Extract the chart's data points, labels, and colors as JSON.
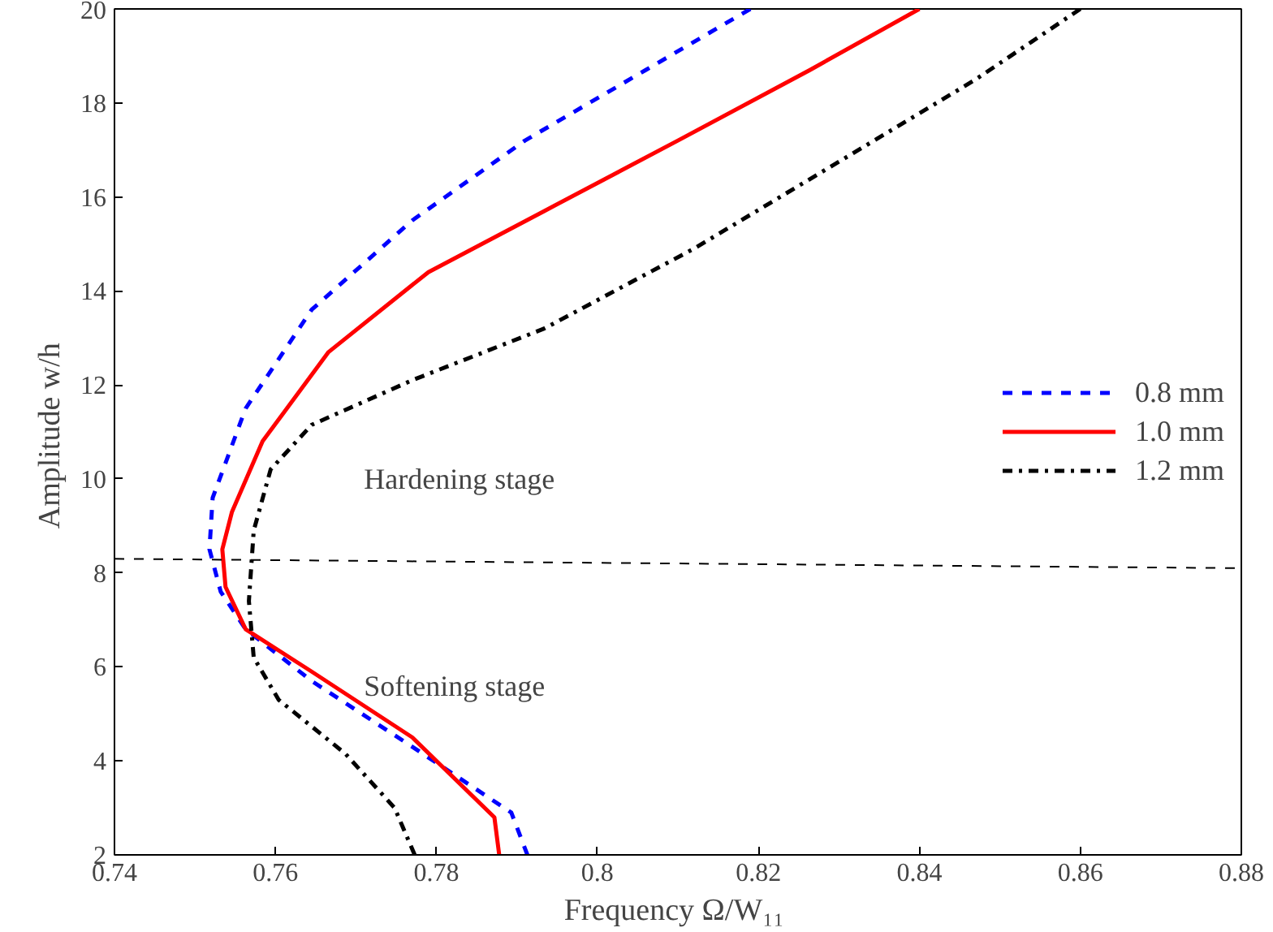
{
  "chart_data": {
    "type": "line",
    "xlabel": "Frequency  Ω/W₁₁",
    "ylabel": "Amplitude  w/h",
    "xlim": [
      0.74,
      0.88
    ],
    "xticks": [
      0.74,
      0.76,
      0.78,
      0.8,
      0.82,
      0.84,
      0.86,
      0.88
    ],
    "ylim": [
      2,
      20
    ],
    "yticks": [
      2,
      4,
      6,
      8,
      10,
      12,
      14,
      16,
      18,
      20
    ],
    "grid": false,
    "legend": "right",
    "annotations": [
      "Hardening stage",
      "Softening stage"
    ],
    "series": [
      {
        "name": "0.8 mm",
        "color": "#0000ff",
        "line_style": "dashed",
        "x": [
          0.819,
          0.806,
          0.791,
          0.777,
          0.7645,
          0.7563,
          0.7522,
          0.7518,
          0.7532,
          0.7563,
          0.7645,
          0.777,
          0.7893,
          0.7913
        ],
        "values": [
          20,
          18.7,
          17.2,
          15.5,
          13.6,
          11.5,
          9.6,
          8.5,
          7.6,
          6.8,
          5.7,
          4.3,
          2.9,
          2
        ]
      },
      {
        "name": "1.0 mm",
        "color": "#ff0000",
        "line_style": "solid",
        "x": [
          0.84,
          0.8264,
          0.81,
          0.7934,
          0.779,
          0.7666,
          0.7584,
          0.7546,
          0.7534,
          0.7538,
          0.7563,
          0.7645,
          0.777,
          0.7872,
          0.7878
        ],
        "values": [
          20,
          18.7,
          17.2,
          15.7,
          14.4,
          12.7,
          10.8,
          9.3,
          8.5,
          7.7,
          6.8,
          5.9,
          4.5,
          2.8,
          2
        ]
      },
      {
        "name": "1.2 mm",
        "color": "#000000",
        "line_style": "dashdot",
        "x": [
          0.86,
          0.847,
          0.8305,
          0.812,
          0.7934,
          0.777,
          0.7645,
          0.7594,
          0.7573,
          0.7567,
          0.7573,
          0.7604,
          0.7687,
          0.7748,
          0.7773
        ],
        "values": [
          20,
          18.5,
          16.8,
          14.9,
          13.2,
          12.1,
          11.15,
          10.2,
          8.9,
          7.4,
          6.2,
          5.3,
          4.15,
          3.0,
          2
        ]
      },
      {
        "color": "#000000",
        "line_style": "dashed",
        "x": [
          0.74,
          0.88
        ],
        "values": [
          8.3,
          8.1
        ]
      }
    ]
  }
}
